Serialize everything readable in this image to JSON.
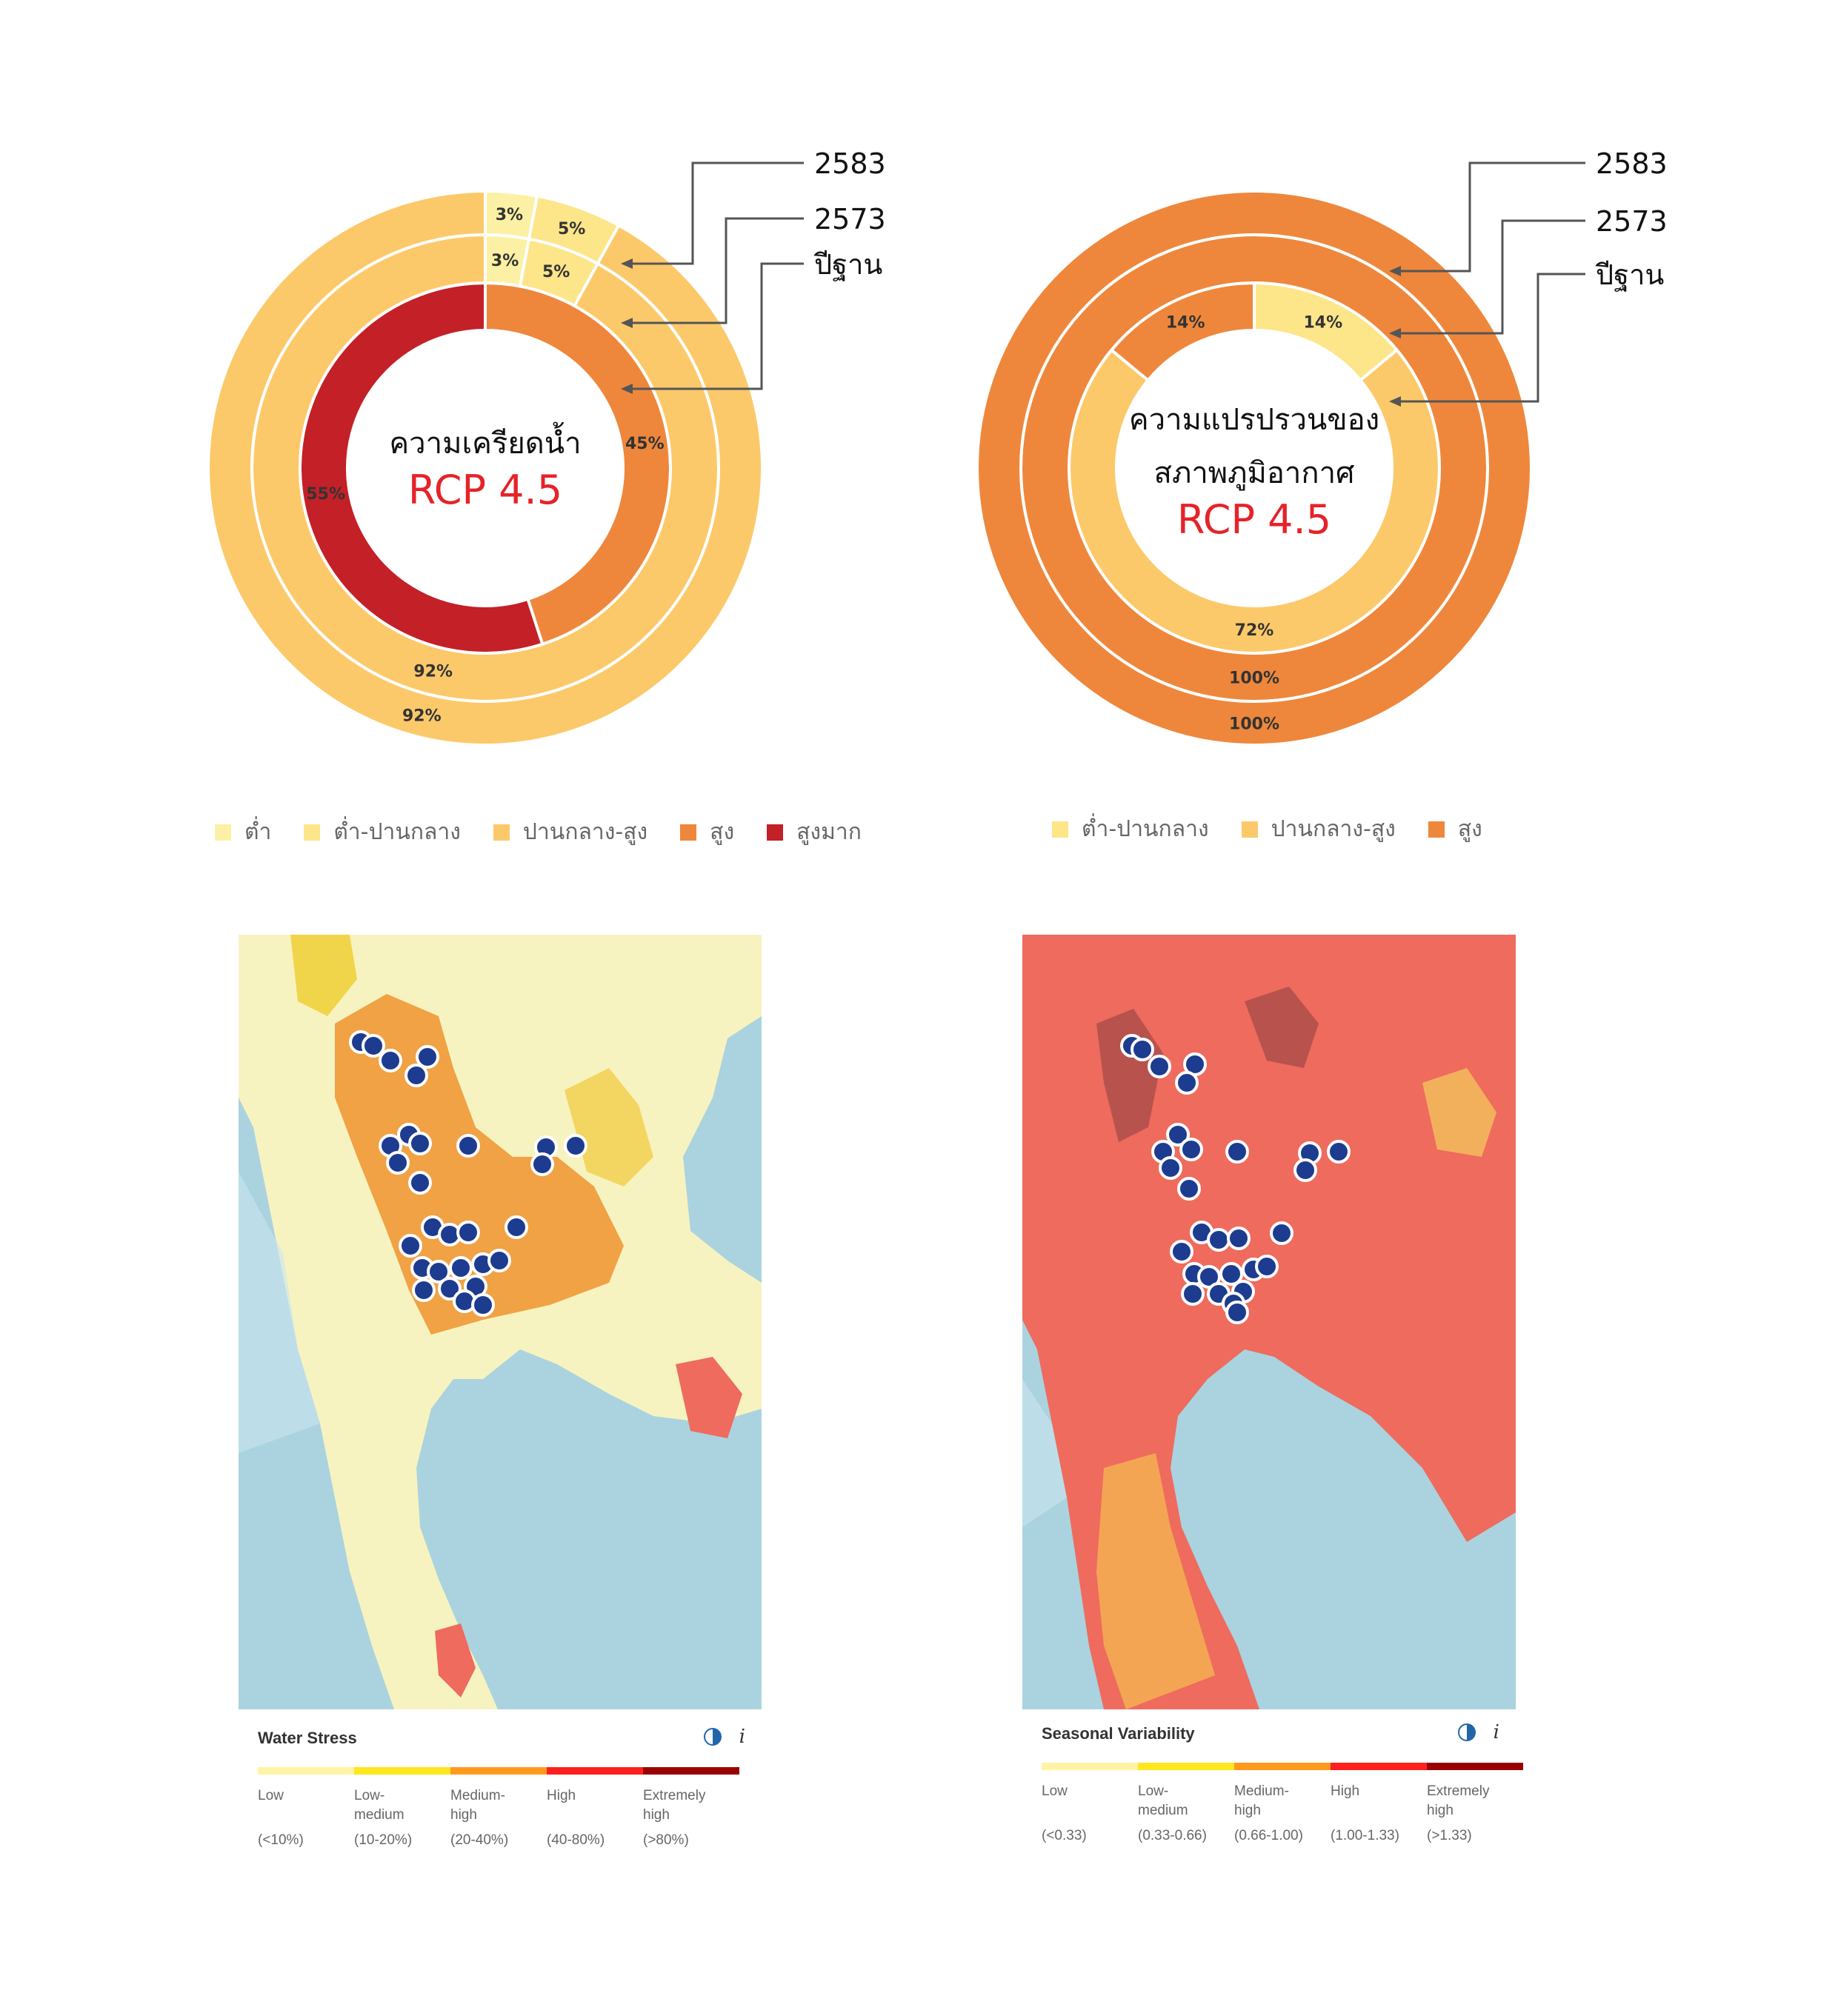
{
  "chart_data": [
    {
      "type": "pie",
      "title": "ความเครียดน้ำ",
      "subtitle": "RCP 4.5",
      "rings": [
        {
          "name": "ปีฐาน",
          "slices": [
            {
              "category": "สูง",
              "value": 45,
              "label": "45%"
            },
            {
              "category": "สูงมาก",
              "value": 55,
              "label": "55%"
            }
          ]
        },
        {
          "name": "2573",
          "slices": [
            {
              "category": "ต่ำ",
              "value": 3,
              "label": "3%"
            },
            {
              "category": "ต่ำ-ปานกลาง",
              "value": 5,
              "label": "5%"
            },
            {
              "category": "ปานกลาง-สูง",
              "value": 92,
              "label": "92%"
            }
          ]
        },
        {
          "name": "2583",
          "slices": [
            {
              "category": "ต่ำ",
              "value": 3,
              "label": "3%"
            },
            {
              "category": "ต่ำ-ปานกลาง",
              "value": 5,
              "label": "5%"
            },
            {
              "category": "ปานกลาง-สูง",
              "value": 92,
              "label": "92%"
            }
          ]
        }
      ],
      "legend": [
        {
          "label": "ต่ำ",
          "color": "#fcf0a4"
        },
        {
          "label": "ต่ำ-ปานกลาง",
          "color": "#fde58a"
        },
        {
          "label": "ปานกลาง-สูง",
          "color": "#fcc96a"
        },
        {
          "label": "สูง",
          "color": "#ee873c"
        },
        {
          "label": "สูงมาก",
          "color": "#c32027"
        }
      ],
      "legend_position": "bottom"
    },
    {
      "type": "pie",
      "title": "ความแปรปรวนของสภาพภูมิอากาศ",
      "title_lines": [
        "ความแปรปรวนของ",
        "สภาพภูมิอากาศ"
      ],
      "subtitle": "RCP 4.5",
      "rings": [
        {
          "name": "ปีฐาน",
          "slices": [
            {
              "category": "ต่ำ-ปานกลาง",
              "value": 14,
              "label": "14%"
            },
            {
              "category": "ปานกลาง-สูง",
              "value": 72,
              "label": "72%"
            },
            {
              "category": "สูง",
              "value": 14,
              "label": "14%"
            }
          ]
        },
        {
          "name": "2573",
          "slices": [
            {
              "category": "สูง",
              "value": 100,
              "label": "100%"
            }
          ]
        },
        {
          "name": "2583",
          "slices": [
            {
              "category": "สูง",
              "value": 100,
              "label": "100%"
            }
          ]
        }
      ],
      "legend": [
        {
          "label": "ต่ำ-ปานกลาง",
          "color": "#fde58a"
        },
        {
          "label": "ปานกลาง-สูง",
          "color": "#fcc96a"
        },
        {
          "label": "สูง",
          "color": "#ee873c"
        }
      ],
      "legend_position": "bottom"
    }
  ],
  "maps": [
    {
      "legend_title": "Water Stress",
      "scale": [
        {
          "label": "Low",
          "range": "(<10%)",
          "color": "#fff3a6"
        },
        {
          "label": "Low-\nmedium",
          "range": "(10-20%)",
          "color": "#ffe61f"
        },
        {
          "label": "Medium-\nhigh",
          "range": "(20-40%)",
          "color": "#ff9a1f"
        },
        {
          "label": "High",
          "range": "(40-80%)",
          "color": "#ff1f1f"
        },
        {
          "label": "Extremely\nhigh",
          "range": "(>80%)",
          "color": "#990000"
        }
      ]
    },
    {
      "legend_title": "Seasonal Variability",
      "scale": [
        {
          "label": "Low",
          "range": "(<0.33)",
          "color": "#fff3a6"
        },
        {
          "label": "Low-\nmedium",
          "range": "(0.33-0.66)",
          "color": "#ffe61f"
        },
        {
          "label": "Medium-\nhigh",
          "range": "(0.66-1.00)",
          "color": "#ff9a1f"
        },
        {
          "label": "High",
          "range": "(1.00-1.33)",
          "color": "#ff1f1f"
        },
        {
          "label": "Extremely\nhigh",
          "range": "(>1.33)",
          "color": "#990000"
        }
      ]
    }
  ],
  "colors": {
    "title": "#111111",
    "subtitle": "#e52329",
    "slice_label": "#333333",
    "callout": "#555555",
    "water": "#aad3df",
    "site_marker": "#1d3c8f"
  }
}
